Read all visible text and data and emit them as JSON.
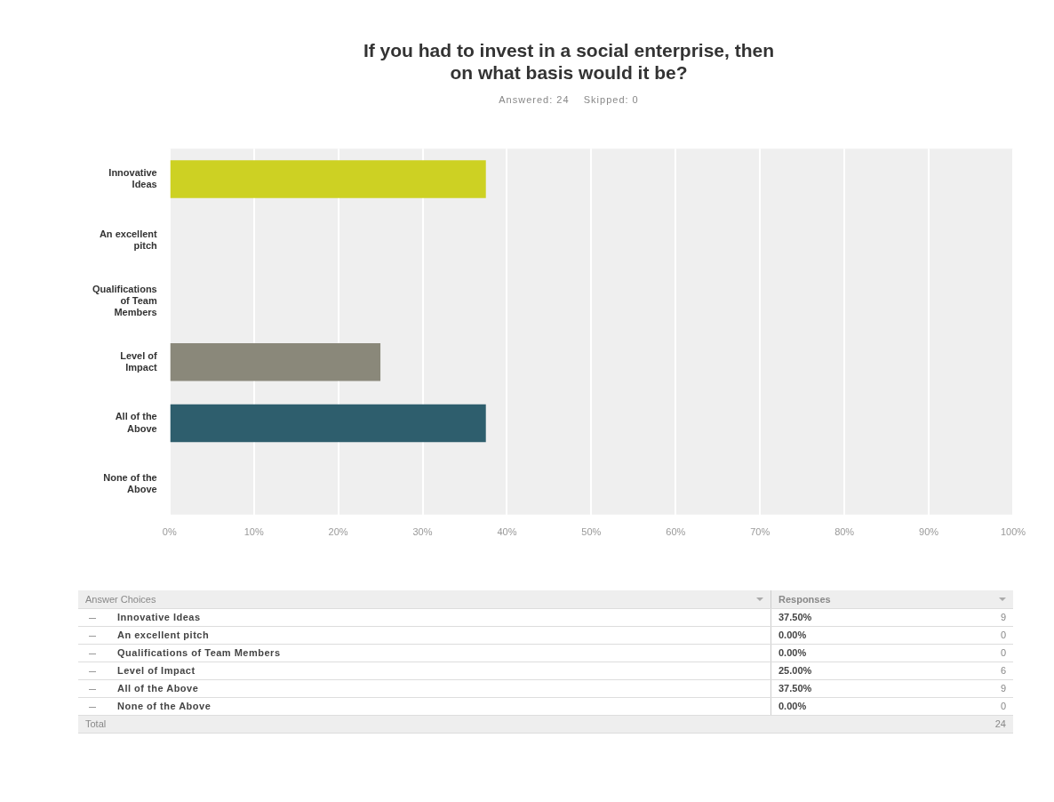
{
  "chart_data": {
    "type": "bar",
    "orientation": "horizontal",
    "title": "If you had to invest in a social enterprise, then on what basis would it be?",
    "subtitle": "Answered: 24    Skipped: 0",
    "categories": [
      "Innovative Ideas",
      "An excellent pitch",
      "Qualifications of Team Members",
      "Level of Impact",
      "All of the Above",
      "None of the Above"
    ],
    "values": [
      37.5,
      0,
      0,
      25,
      37.5,
      0
    ],
    "colors": [
      "#cdd123",
      "#1f7b89",
      "#9a3a5e",
      "#8a887a",
      "#2e5e6d",
      "#d58b27"
    ],
    "xlim": [
      0,
      100
    ],
    "xticks": [
      {
        "value": 0,
        "label": "0%"
      },
      {
        "value": 10,
        "label": "10%"
      },
      {
        "value": 20,
        "label": "20%"
      },
      {
        "value": 30,
        "label": "30%"
      },
      {
        "value": 40,
        "label": "40%"
      },
      {
        "value": 50,
        "label": "50%"
      },
      {
        "value": 60,
        "label": "60%"
      },
      {
        "value": 70,
        "label": "70%"
      },
      {
        "value": 80,
        "label": "80%"
      },
      {
        "value": 90,
        "label": "90%"
      },
      {
        "value": 100,
        "label": "100%"
      }
    ],
    "grid": "x",
    "legend": false,
    "annotations": [
      "Answer Choices",
      "Responses",
      "37.50%",
      "9",
      "0.00%",
      "0",
      "0.00%",
      "0",
      "25.00%",
      "6",
      "37.50%",
      "9",
      "0.00%",
      "0",
      "Total",
      "24"
    ]
  }
}
